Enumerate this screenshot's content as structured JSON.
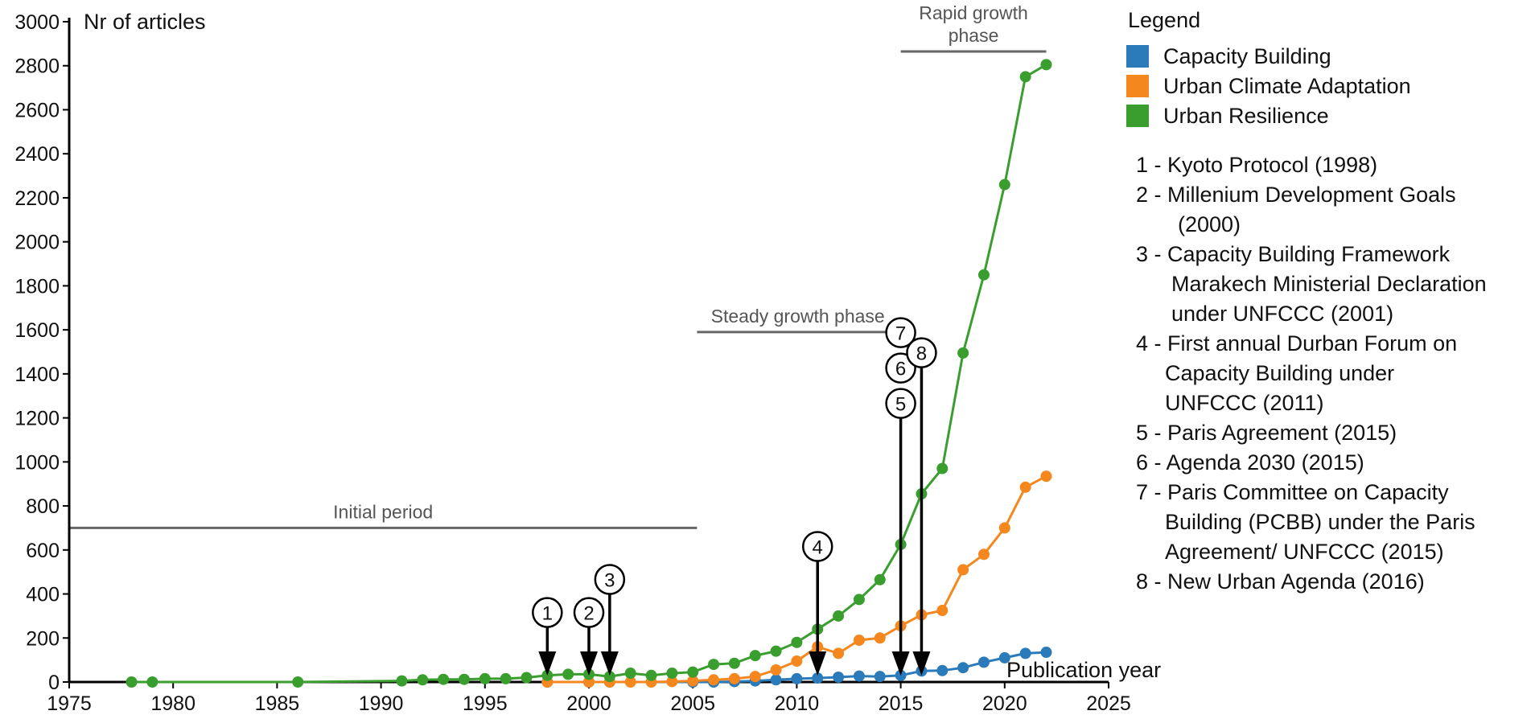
{
  "chart_data": {
    "type": "line",
    "title": "",
    "ylabel": "Nr of articles",
    "xlabel": "Publication year",
    "xlim": [
      1975,
      2025
    ],
    "ylim": [
      0,
      3000
    ],
    "x_ticks": [
      1975,
      1980,
      1985,
      1990,
      1995,
      2000,
      2005,
      2010,
      2015,
      2020,
      2025
    ],
    "y_ticks": [
      0,
      200,
      400,
      600,
      800,
      1000,
      1200,
      1400,
      1600,
      1800,
      2000,
      2200,
      2400,
      2600,
      2800,
      3000
    ],
    "series": [
      {
        "name": "Capacity Building",
        "color": "#2b7bba",
        "points": [
          [
            1998,
            0
          ],
          [
            2000,
            0
          ],
          [
            2001,
            0
          ],
          [
            2005,
            0
          ],
          [
            2006,
            0
          ],
          [
            2007,
            2
          ],
          [
            2008,
            5
          ],
          [
            2009,
            10
          ],
          [
            2010,
            15
          ],
          [
            2011,
            18
          ],
          [
            2012,
            22
          ],
          [
            2013,
            27
          ],
          [
            2014,
            25
          ],
          [
            2015,
            30
          ],
          [
            2016,
            50
          ],
          [
            2017,
            52
          ],
          [
            2018,
            65
          ],
          [
            2019,
            90
          ],
          [
            2020,
            110
          ],
          [
            2021,
            130
          ],
          [
            2022,
            135
          ]
        ]
      },
      {
        "name": "Urban Climate Adaptation",
        "color": "#f5871f",
        "points": [
          [
            1998,
            0
          ],
          [
            2000,
            0
          ],
          [
            2001,
            0
          ],
          [
            2002,
            0
          ],
          [
            2003,
            0
          ],
          [
            2004,
            2
          ],
          [
            2005,
            5
          ],
          [
            2006,
            10
          ],
          [
            2007,
            15
          ],
          [
            2008,
            25
          ],
          [
            2009,
            55
          ],
          [
            2010,
            95
          ],
          [
            2011,
            160
          ],
          [
            2012,
            130
          ],
          [
            2013,
            190
          ],
          [
            2014,
            200
          ],
          [
            2015,
            255
          ],
          [
            2016,
            305
          ],
          [
            2017,
            325
          ],
          [
            2018,
            510
          ],
          [
            2019,
            580
          ],
          [
            2020,
            700
          ],
          [
            2021,
            885
          ],
          [
            2022,
            935
          ]
        ]
      },
      {
        "name": "Urban Resilience",
        "color": "#3a9e2f",
        "points": [
          [
            1978,
            0
          ],
          [
            1979,
            0
          ],
          [
            1986,
            0
          ],
          [
            1991,
            5
          ],
          [
            1992,
            10
          ],
          [
            1993,
            12
          ],
          [
            1994,
            12
          ],
          [
            1995,
            15
          ],
          [
            1996,
            15
          ],
          [
            1997,
            20
          ],
          [
            1998,
            30
          ],
          [
            1999,
            35
          ],
          [
            2000,
            35
          ],
          [
            2001,
            25
          ],
          [
            2002,
            40
          ],
          [
            2003,
            30
          ],
          [
            2004,
            40
          ],
          [
            2005,
            45
          ],
          [
            2006,
            80
          ],
          [
            2007,
            85
          ],
          [
            2008,
            120
          ],
          [
            2009,
            140
          ],
          [
            2010,
            180
          ],
          [
            2011,
            240
          ],
          [
            2012,
            300
          ],
          [
            2013,
            375
          ],
          [
            2014,
            465
          ],
          [
            2015,
            625
          ],
          [
            2016,
            855
          ],
          [
            2017,
            970
          ],
          [
            2018,
            1495
          ],
          [
            2019,
            1850
          ],
          [
            2020,
            2260
          ],
          [
            2021,
            2750
          ],
          [
            2022,
            2805
          ]
        ]
      }
    ],
    "phases": [
      {
        "label": "Initial period",
        "x_start": 1975,
        "x_end": 2005.2,
        "y": 700
      },
      {
        "label": "Steady growth phase",
        "x_start": 2005.2,
        "x_end": 2014.9,
        "y": 1590
      },
      {
        "label_lines": [
          "Rapid growth",
          "phase"
        ],
        "x_start": 2015,
        "x_end": 2022,
        "y": 2865
      }
    ],
    "event_markers": [
      {
        "numbers": [
          "1"
        ],
        "year": 1998,
        "top_value": 250
      },
      {
        "numbers": [
          "2"
        ],
        "year": 2000,
        "top_value": 250
      },
      {
        "numbers": [
          "3"
        ],
        "year": 2001,
        "top_value": 400
      },
      {
        "numbers": [
          "4"
        ],
        "year": 2011,
        "top_value": 550
      },
      {
        "numbers": [
          "7",
          "6",
          "5"
        ],
        "year": 2015,
        "top_value": 1200
      },
      {
        "numbers": [
          "8"
        ],
        "year": 2016,
        "top_value": 1430
      }
    ]
  },
  "legend": {
    "title": "Legend",
    "entries": [
      {
        "label": "Capacity Building",
        "color": "#2b7bba"
      },
      {
        "label": "Urban Climate Adaptation",
        "color": "#f5871f"
      },
      {
        "label": "Urban Resilience",
        "color": "#3a9e2f"
      }
    ]
  },
  "events": [
    {
      "lines": [
        "1 - Kyoto Protocol (1998)"
      ]
    },
    {
      "lines": [
        "2 - Millenium Development Goals",
        "(2000)"
      ]
    },
    {
      "lines": [
        "3 - Capacity Building  Framework",
        "Marakech Ministerial Declaration",
        "under UNFCCC (2001)"
      ]
    },
    {
      "lines": [
        "4 - First annual Durban Forum on",
        "Capacity Building under",
        "UNFCCC (2011)"
      ]
    },
    {
      "lines": [
        "5 - Paris Agreement (2015)"
      ]
    },
    {
      "lines": [
        "6 - Agenda 2030 (2015)"
      ]
    },
    {
      "lines": [
        "7 - Paris Committee on Capacity",
        "Building (PCBB) under the Paris",
        "Agreement/ UNFCCC (2015)"
      ]
    },
    {
      "lines": [
        "8 - New Urban Agenda (2016)"
      ]
    }
  ]
}
